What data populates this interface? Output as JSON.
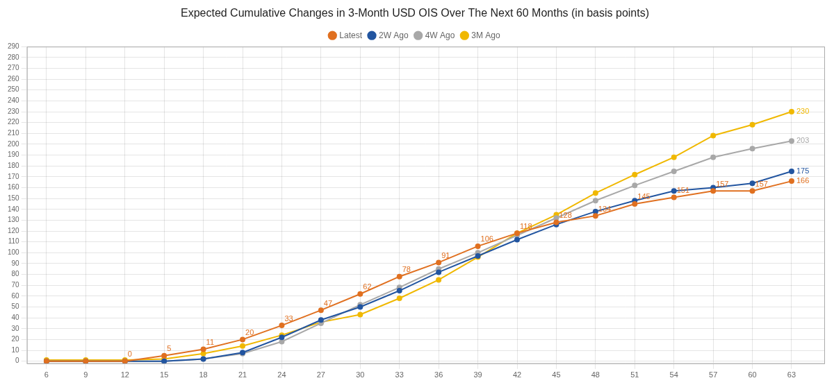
{
  "chart_data": {
    "type": "line",
    "title": "Expected Cumulative Changes in 3-Month USD OIS Over The Next 60 Months (in basis points)",
    "x": [
      6,
      9,
      12,
      15,
      18,
      21,
      24,
      27,
      30,
      33,
      36,
      39,
      42,
      45,
      48,
      51,
      54,
      57,
      60,
      63
    ],
    "series": [
      {
        "name": "Latest",
        "color": "#E07020",
        "marker": "circle",
        "line_style": "solid",
        "values": [
          0,
          0,
          0,
          5,
          11,
          20,
          33,
          47,
          62,
          78,
          91,
          106,
          118,
          128,
          134,
          145,
          151,
          157,
          157,
          166
        ]
      },
      {
        "name": "2W Ago",
        "color": "#2255A0",
        "marker": "circle",
        "line_style": "solid",
        "values": [
          0,
          0,
          0,
          0,
          2,
          8,
          22,
          38,
          50,
          65,
          82,
          97,
          112,
          126,
          138,
          148,
          157,
          160,
          164,
          175
        ]
      },
      {
        "name": "4W Ago",
        "color": "#A8A8A8",
        "marker": "circle",
        "line_style": "solid",
        "values": [
          0,
          0,
          0,
          0,
          2,
          7,
          18,
          35,
          52,
          68,
          85,
          100,
          116,
          132,
          148,
          162,
          175,
          188,
          196,
          203
        ]
      },
      {
        "name": "3M Ago",
        "color": "#F0B800",
        "marker": "circle",
        "line_style": "solid",
        "values": [
          1,
          1,
          1,
          2,
          7,
          14,
          24,
          36,
          43,
          58,
          75,
          96,
          118,
          135,
          155,
          172,
          188,
          208,
          218,
          230
        ]
      }
    ],
    "annotations": [
      {
        "text": "0",
        "x": 12,
        "y": 0,
        "color": "#E07020"
      },
      {
        "text": "5",
        "x": 15,
        "y": 5,
        "color": "#E07020"
      },
      {
        "text": "11",
        "x": 18,
        "y": 11,
        "color": "#E07020"
      },
      {
        "text": "20",
        "x": 21,
        "y": 20,
        "color": "#E07020"
      },
      {
        "text": "33",
        "x": 24,
        "y": 33,
        "color": "#E07020"
      },
      {
        "text": "47",
        "x": 27,
        "y": 47,
        "color": "#E07020"
      },
      {
        "text": "62",
        "x": 30,
        "y": 62,
        "color": "#E07020"
      },
      {
        "text": "78",
        "x": 33,
        "y": 78,
        "color": "#E07020"
      },
      {
        "text": "91",
        "x": 36,
        "y": 91,
        "color": "#E07020"
      },
      {
        "text": "106",
        "x": 39,
        "y": 106,
        "color": "#E07020"
      },
      {
        "text": "118",
        "x": 42,
        "y": 118,
        "color": "#E07020"
      },
      {
        "text": "128",
        "x": 45,
        "y": 128,
        "color": "#E07020"
      },
      {
        "text": "134",
        "x": 48,
        "y": 134,
        "color": "#E07020"
      },
      {
        "text": "145",
        "x": 51,
        "y": 145,
        "color": "#E07020"
      },
      {
        "text": "151",
        "x": 54,
        "y": 151,
        "color": "#E07020"
      },
      {
        "text": "157",
        "x": 57,
        "y": 157,
        "color": "#E07020"
      },
      {
        "text": "157",
        "x": 60,
        "y": 157,
        "color": "#E07020"
      },
      {
        "text": "166",
        "x": 63,
        "y": 166,
        "color": "#E07020"
      },
      {
        "text": "175",
        "x": 63,
        "y": 175,
        "color": "#2255A0"
      },
      {
        "text": "203",
        "x": 63,
        "y": 203,
        "color": "#A8A8A8"
      },
      {
        "text": "230",
        "x": 63,
        "y": 230,
        "color": "#F0B800"
      }
    ],
    "xlim": [
      4.5,
      65.5
    ],
    "xticks": [
      6,
      9,
      12,
      15,
      18,
      21,
      24,
      27,
      30,
      33,
      36,
      39,
      42,
      45,
      48,
      51,
      54,
      57,
      60,
      63
    ],
    "ylim": [
      -2,
      290
    ],
    "yticks": [
      0,
      10,
      20,
      30,
      40,
      50,
      60,
      70,
      80,
      90,
      100,
      110,
      120,
      130,
      140,
      150,
      160,
      170,
      180,
      190,
      200,
      210,
      220,
      230,
      240,
      250,
      260,
      270,
      280,
      290
    ],
    "grid": true,
    "legend": "top"
  }
}
